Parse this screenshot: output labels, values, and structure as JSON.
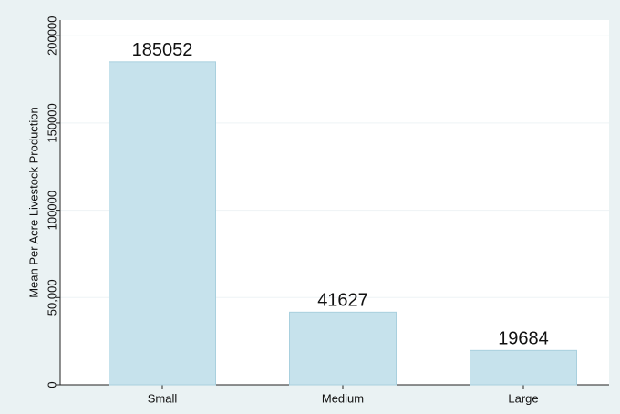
{
  "chart_data": {
    "type": "bar",
    "ylabel": "Mean Per Acre Livestock Production",
    "categories": [
      "Small",
      "Medium",
      "Large"
    ],
    "values": [
      185052,
      41627,
      19684
    ],
    "color": "#c6e2ec",
    "ylim": [
      0,
      209000
    ],
    "yticks": [
      0,
      {
        "value": 50000,
        "label": "50,000"
      },
      100000,
      150000,
      200000
    ],
    "grid": true
  }
}
